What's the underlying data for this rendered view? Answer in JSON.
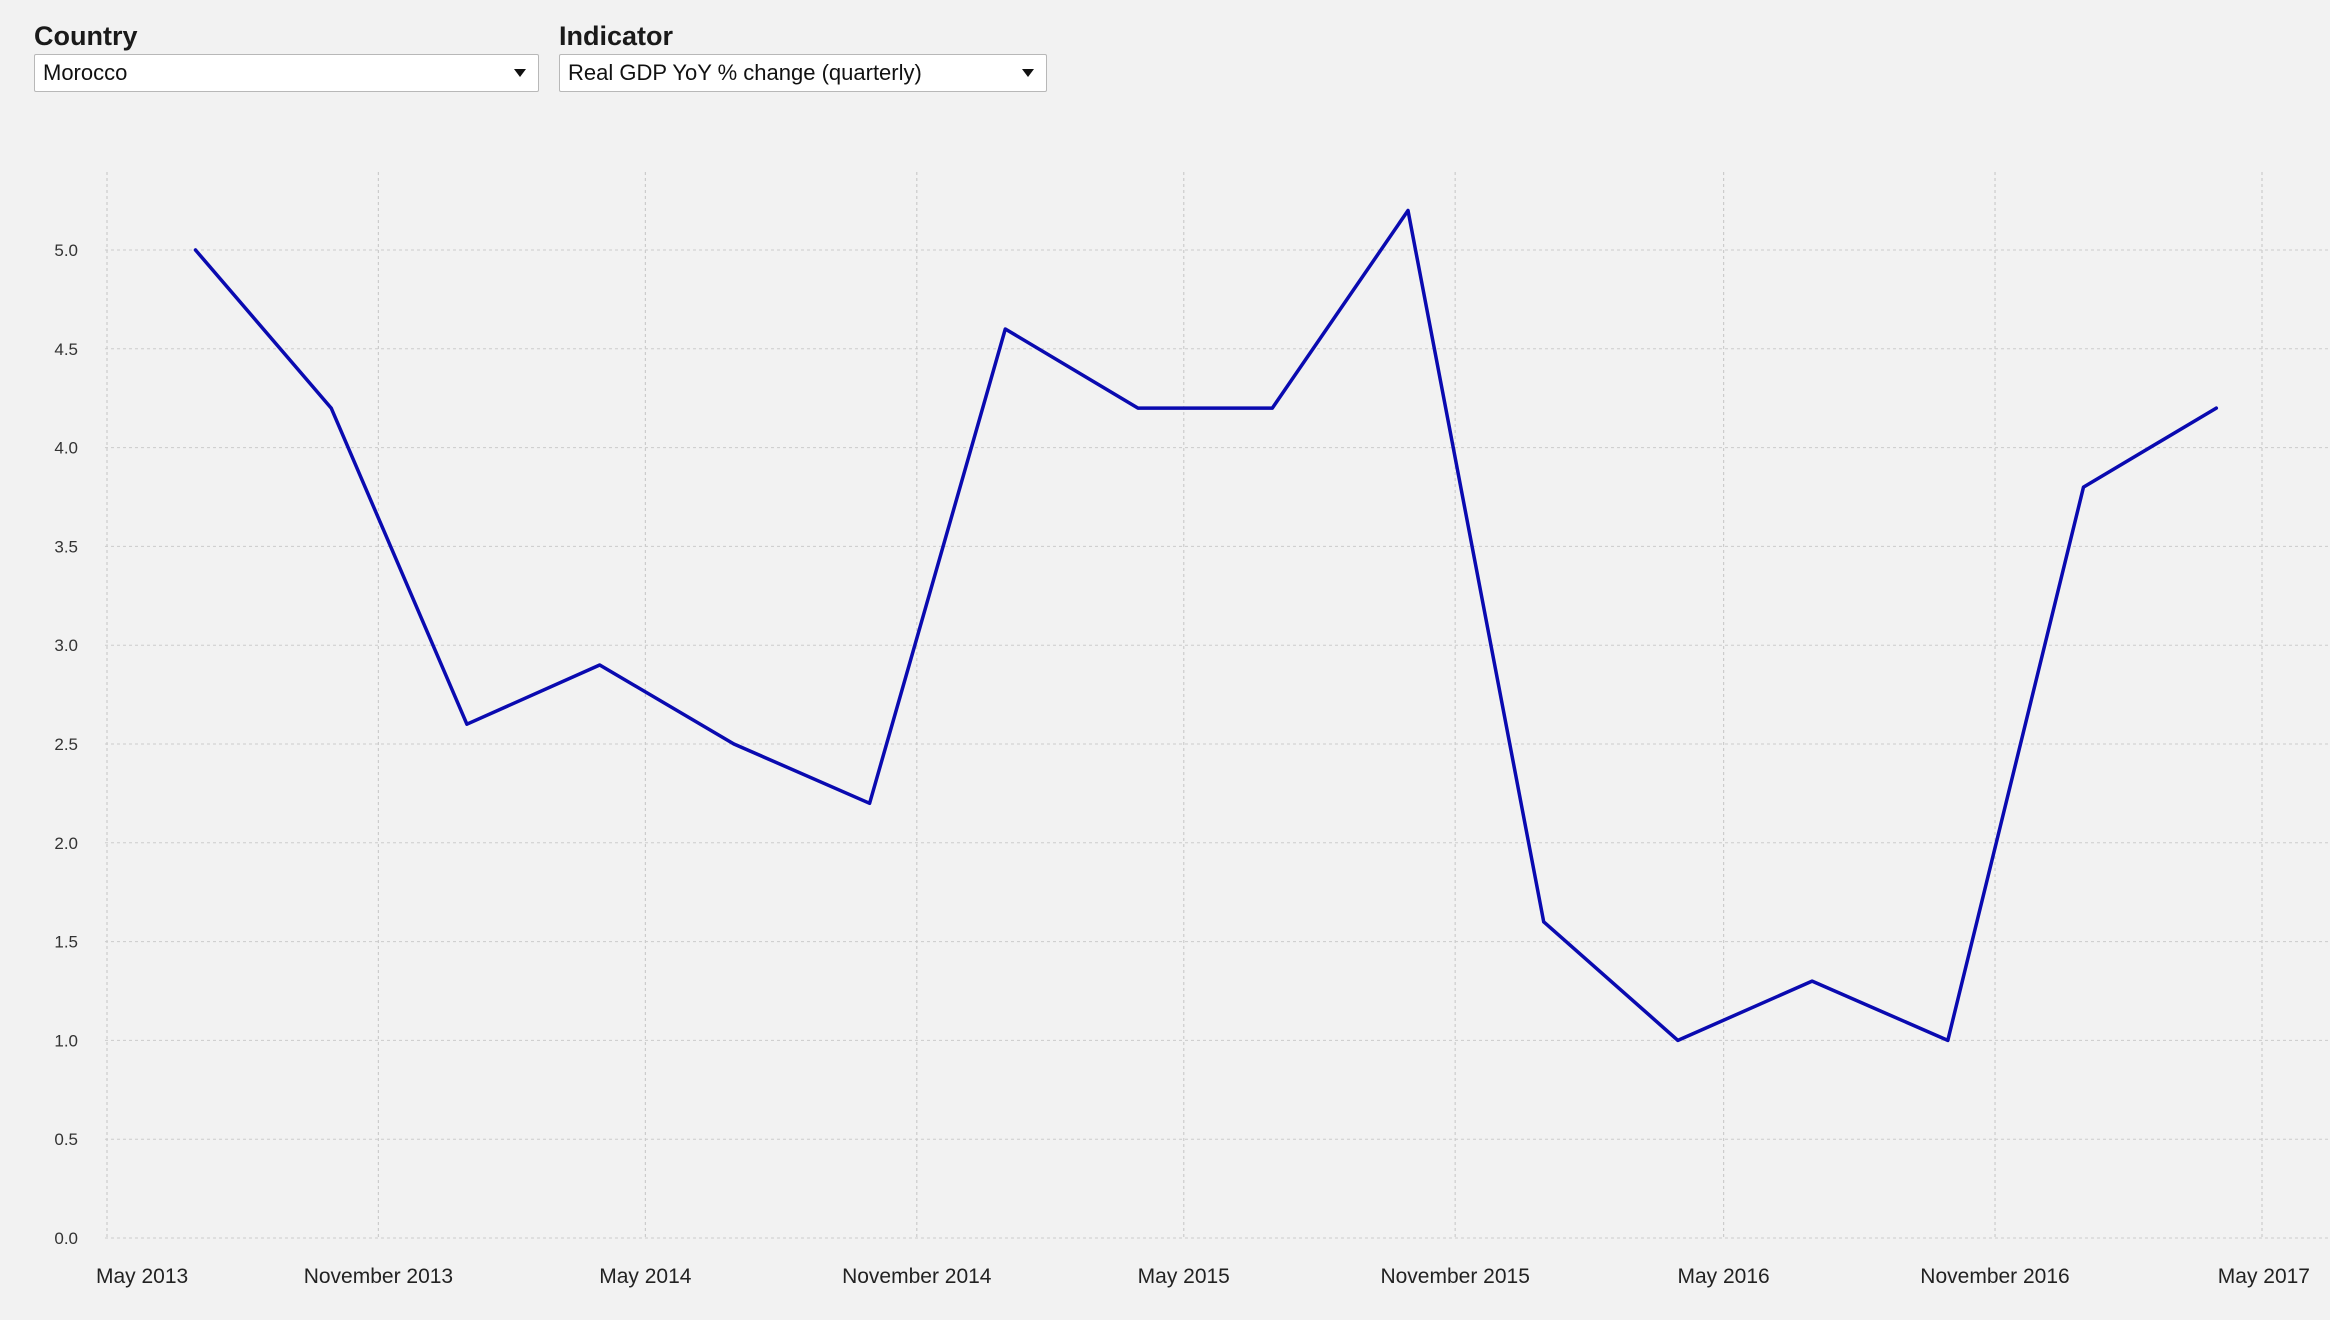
{
  "controls": {
    "country": {
      "label": "Country",
      "value": "Morocco"
    },
    "indicator": {
      "label": "Indicator",
      "value": "Real GDP YoY % change (quarterly)"
    }
  },
  "colors": {
    "line": "#0a0ab0",
    "background": "#f2f2f2",
    "grid": "#cccccc"
  },
  "chart_data": {
    "type": "line",
    "title": "",
    "xlabel": "",
    "ylabel": "",
    "ylim": [
      0,
      5.2
    ],
    "xlim": [
      "2013-04-01",
      "2017-06-01"
    ],
    "y_ticks": [
      "0.0",
      "0.5",
      "1.0",
      "1.5",
      "2.0",
      "2.5",
      "3.0",
      "3.5",
      "4.0",
      "4.5",
      "5.0"
    ],
    "x_ticks": [
      {
        "date": "2013-05-01",
        "label": "May 2013"
      },
      {
        "date": "2013-11-01",
        "label": "November 2013"
      },
      {
        "date": "2014-05-01",
        "label": "May 2014"
      },
      {
        "date": "2014-11-01",
        "label": "November 2014"
      },
      {
        "date": "2015-05-01",
        "label": "May 2015"
      },
      {
        "date": "2015-11-01",
        "label": "November 2015"
      },
      {
        "date": "2016-05-01",
        "label": "May 2016"
      },
      {
        "date": "2016-11-01",
        "label": "November 2016"
      },
      {
        "date": "2017-05-01",
        "label": "May 2017"
      }
    ],
    "grid": true,
    "series": [
      {
        "x": [
          "2013-06-30",
          "2013-09-30",
          "2013-12-31",
          "2014-03-31",
          "2014-06-30",
          "2014-09-30",
          "2014-12-31",
          "2015-03-31",
          "2015-06-30",
          "2015-09-30",
          "2015-12-31",
          "2016-03-31",
          "2016-06-30",
          "2016-09-30",
          "2016-12-31",
          "2017-03-31"
        ],
        "values": [
          5.0,
          4.2,
          2.6,
          2.9,
          2.5,
          2.2,
          4.6,
          4.2,
          4.2,
          5.2,
          1.6,
          1.0,
          1.3,
          1.0,
          3.8,
          4.2
        ]
      }
    ]
  }
}
